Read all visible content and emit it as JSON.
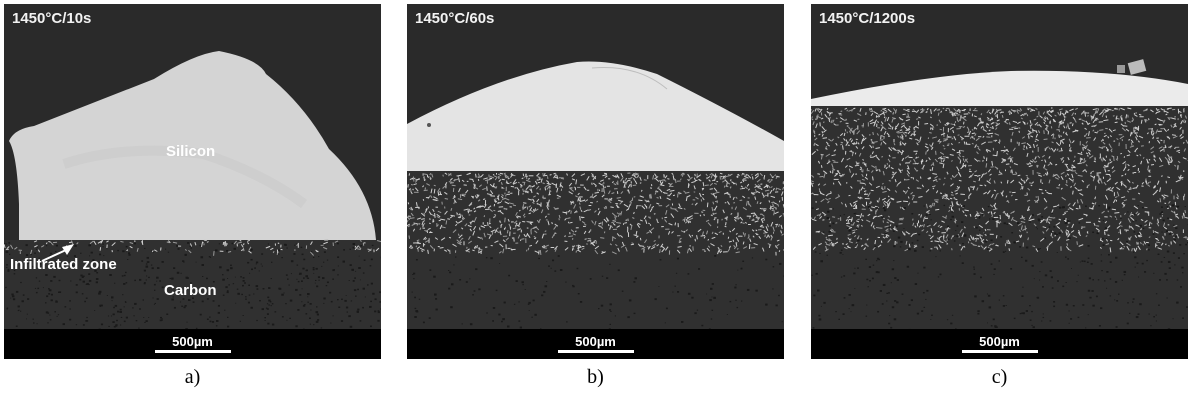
{
  "panels": [
    {
      "condition": "1450°C/10s",
      "scale_label": "500µm",
      "caption": "a)",
      "labels": {
        "silicon": "Silicon",
        "infiltrated": "Infiltrated zone",
        "carbon": "Carbon"
      }
    },
    {
      "condition": "1450°C/60s",
      "scale_label": "500µm",
      "caption": "b)"
    },
    {
      "condition": "1450°C/1200s",
      "scale_label": "500µm",
      "caption": "c)"
    }
  ],
  "colors": {
    "silicon": "#d2d2d2",
    "carbon": "#2f2f2f",
    "background": "#2b2b2b",
    "scale_strip": "#000000"
  }
}
